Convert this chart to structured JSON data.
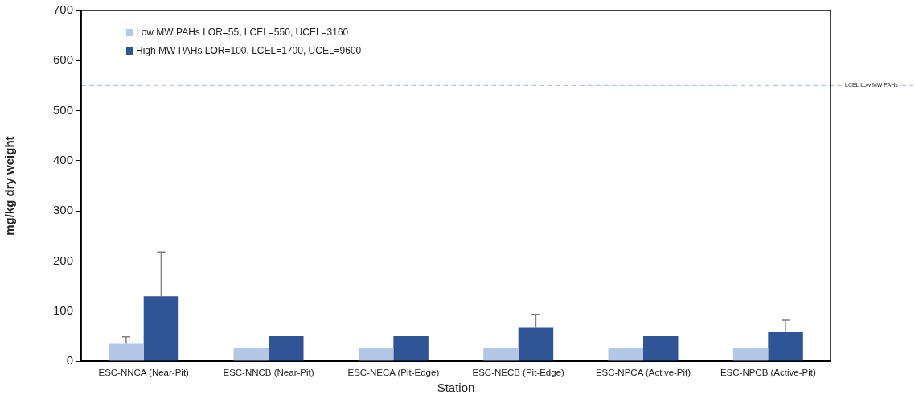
{
  "chart_data": {
    "type": "bar",
    "xlabel": "Station",
    "ylabel": "mg/kg dry weight",
    "categories": [
      "ESC-NNCA (Near-Pit)",
      "ESC-NNCB (Near-Pit)",
      "ESC-NECA (Pit-Edge)",
      "ESC-NECB (Pit-Edge)",
      "ESC-NPCA (Active-Pit)",
      "ESC-NPCB (Active-Pit)"
    ],
    "series": [
      {
        "name": "Low MW PAHs LOR=55, LCEL=550, UCEL=3160",
        "color": "#b4c7e7",
        "values": [
          35,
          27,
          27,
          27,
          27,
          27
        ],
        "errors": [
          [
            35,
            49
          ],
          null,
          null,
          null,
          null,
          null
        ]
      },
      {
        "name": "High MW PAHs LOR=100, LCEL=1700, UCEL=9600",
        "color": "#2f5597",
        "values": [
          130,
          50,
          50,
          67,
          50,
          58
        ],
        "errors": [
          [
            130,
            218
          ],
          null,
          null,
          [
            67,
            94
          ],
          null,
          [
            58,
            82
          ]
        ]
      }
    ],
    "ylim": [
      0,
      700
    ],
    "yticks": [
      0,
      100,
      200,
      300,
      400,
      500,
      600,
      700
    ],
    "ref_lines": [
      {
        "axis": "y",
        "value": 550,
        "label": "LCEL Low MW PAHs",
        "color": "#b4c7e7",
        "line_style": "dashed"
      }
    ],
    "legend": "top left",
    "grid": false
  }
}
